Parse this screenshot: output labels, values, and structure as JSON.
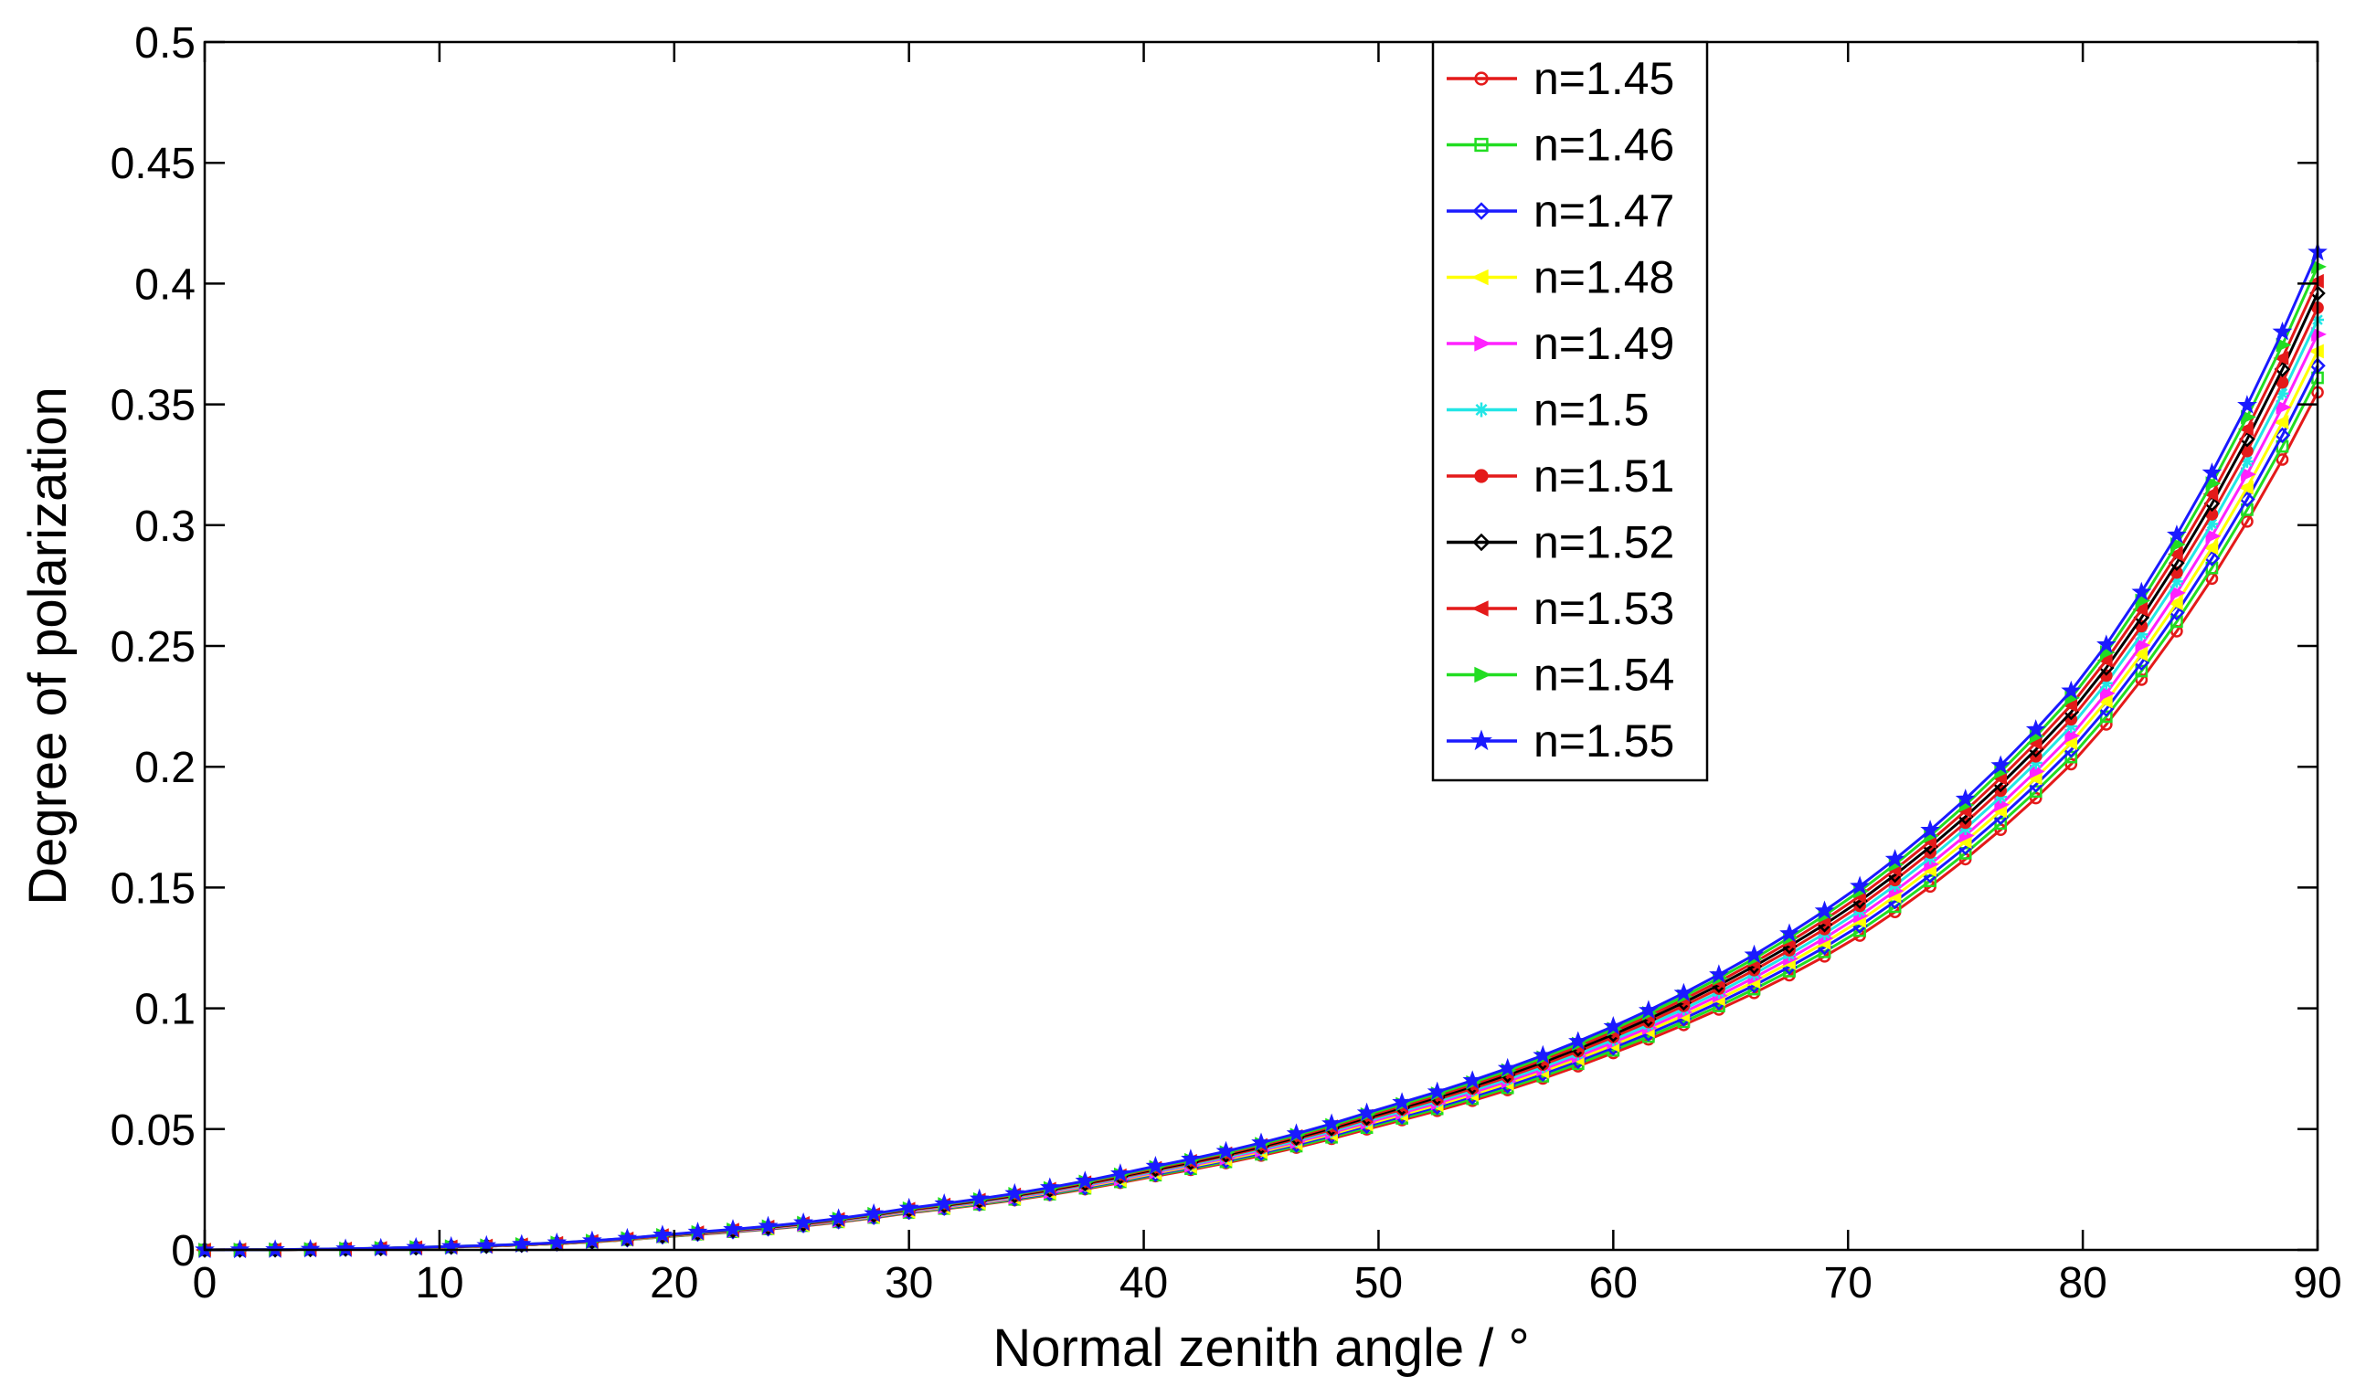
{
  "chart_data": {
    "type": "line",
    "title": "",
    "xlabel": "Normal zenith angle / °",
    "ylabel": "Degree of polarization",
    "xlim": [
      0,
      90
    ],
    "ylim": [
      0,
      0.5
    ],
    "xticks": [
      0,
      10,
      20,
      30,
      40,
      50,
      60,
      70,
      80,
      90
    ],
    "xtick_labels": [
      "0",
      "10",
      "20",
      "30",
      "40",
      "50",
      "60",
      "70",
      "80",
      "90"
    ],
    "yticks": [
      0,
      0.05,
      0.1,
      0.15,
      0.2,
      0.25,
      0.3,
      0.35,
      0.4,
      0.45,
      0.5
    ],
    "ytick_labels": [
      "0",
      "0.05",
      "0.1",
      "0.15",
      "0.2",
      "0.25",
      "0.3",
      "0.35",
      "0.4",
      "0.45",
      "0.5"
    ],
    "grid": false,
    "legend_position": "top-center",
    "x": [
      0,
      10,
      20,
      30,
      40,
      50,
      60,
      70,
      80,
      90
    ],
    "series": [
      {
        "name": "n=1.45",
        "color": "#e41a1a",
        "marker": "circle",
        "values": [
          0.0,
          0.0011,
          0.0058,
          0.0153,
          0.0297,
          0.0513,
          0.0815,
          0.127,
          0.206,
          0.355
        ]
      },
      {
        "name": "n=1.46",
        "color": "#22dd22",
        "marker": "square",
        "values": [
          0.0,
          0.0011,
          0.0059,
          0.0155,
          0.0301,
          0.052,
          0.0826,
          0.129,
          0.209,
          0.361
        ]
      },
      {
        "name": "n=1.47",
        "color": "#1a1aff",
        "marker": "diamond",
        "values": [
          0.0,
          0.0011,
          0.006,
          0.0157,
          0.0305,
          0.0527,
          0.0837,
          0.131,
          0.212,
          0.366
        ]
      },
      {
        "name": "n=1.48",
        "color": "#ffff00",
        "marker": "triangle-left",
        "values": [
          0.0,
          0.0011,
          0.0061,
          0.0159,
          0.0309,
          0.0534,
          0.0848,
          0.133,
          0.215,
          0.372
        ]
      },
      {
        "name": "n=1.49",
        "color": "#ff22ff",
        "marker": "triangle-right",
        "values": [
          0.0,
          0.0012,
          0.0062,
          0.0161,
          0.0313,
          0.0541,
          0.0859,
          0.135,
          0.218,
          0.379
        ]
      },
      {
        "name": "n=1.5",
        "color": "#22e6e6",
        "marker": "asterisk",
        "values": [
          0.0,
          0.0012,
          0.0063,
          0.0163,
          0.0317,
          0.0548,
          0.087,
          0.137,
          0.222,
          0.385
        ]
      },
      {
        "name": "n=1.51",
        "color": "#e41a1a",
        "marker": "filled-circle",
        "values": [
          0.0,
          0.0012,
          0.0063,
          0.0165,
          0.0321,
          0.0555,
          0.0881,
          0.139,
          0.225,
          0.39
        ]
      },
      {
        "name": "n=1.52",
        "color": "#000000",
        "marker": "diamond",
        "values": [
          0.0,
          0.0012,
          0.0064,
          0.0167,
          0.0325,
          0.0562,
          0.0892,
          0.141,
          0.228,
          0.396
        ]
      },
      {
        "name": "n=1.53",
        "color": "#e41a1a",
        "marker": "triangle-left",
        "values": [
          0.0,
          0.0012,
          0.0065,
          0.0169,
          0.0329,
          0.0569,
          0.0903,
          0.143,
          0.231,
          0.401
        ]
      },
      {
        "name": "n=1.54",
        "color": "#22dd22",
        "marker": "triangle-right",
        "values": [
          0.0,
          0.0013,
          0.0066,
          0.0171,
          0.0333,
          0.0576,
          0.0914,
          0.145,
          0.234,
          0.407
        ]
      },
      {
        "name": "n=1.55",
        "color": "#1a1aff",
        "marker": "star",
        "values": [
          0.0,
          0.0013,
          0.0067,
          0.0173,
          0.0337,
          0.0583,
          0.0925,
          0.147,
          0.237,
          0.413
        ]
      }
    ]
  }
}
